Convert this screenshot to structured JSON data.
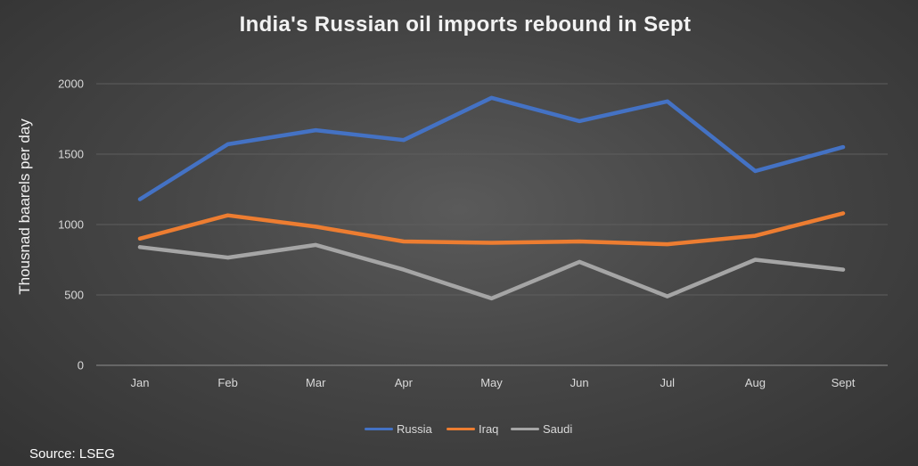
{
  "chart_data": {
    "type": "line",
    "title": "India's Russian oil imports rebound in Sept",
    "xlabel": "",
    "ylabel": "Thousnad baarels per day",
    "ylim": [
      0,
      2000
    ],
    "yticks": [
      0,
      500,
      1000,
      1500,
      2000
    ],
    "grid": true,
    "legend_position": "bottom",
    "categories": [
      "Jan",
      "Feb",
      "Mar",
      "Apr",
      "May",
      "Jun",
      "Jul",
      "Aug",
      "Sept"
    ],
    "series": [
      {
        "name": "Russia",
        "color": "#4472c4",
        "values": [
          1180,
          1570,
          1670,
          1600,
          1900,
          1735,
          1875,
          1380,
          1550
        ]
      },
      {
        "name": "Iraq",
        "color": "#ed7d31",
        "values": [
          900,
          1065,
          985,
          880,
          870,
          880,
          860,
          920,
          1080
        ]
      },
      {
        "name": "Saudi",
        "color": "#a5a5a5",
        "values": [
          840,
          765,
          855,
          680,
          475,
          735,
          490,
          750,
          680
        ]
      }
    ]
  },
  "source": "Source: LSEG"
}
